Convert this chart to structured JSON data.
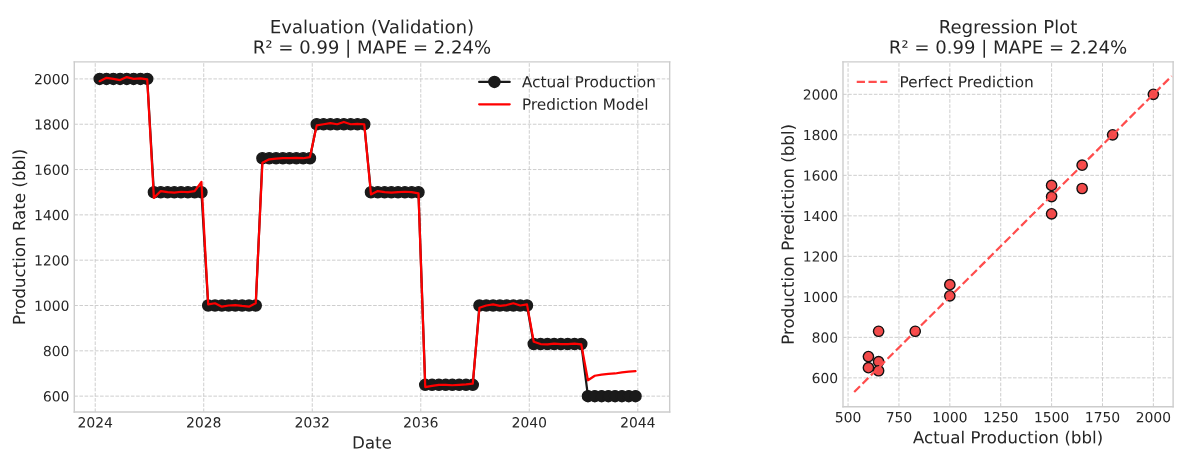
{
  "chart_data": [
    {
      "type": "line",
      "title": "Evaluation (Validation)\nR² = 0.99 | MAPE = 2.24%",
      "xlabel": "Date",
      "ylabel": "Production Rate (bbl)",
      "x": [
        "2024-03",
        "2024-06",
        "2024-09",
        "2024-12",
        "2025-03",
        "2025-06",
        "2025-09",
        "2025-12",
        "2026-03",
        "2026-06",
        "2026-09",
        "2026-12",
        "2027-03",
        "2027-06",
        "2027-09",
        "2027-12",
        "2028-03",
        "2028-06",
        "2028-09",
        "2028-12",
        "2029-03",
        "2029-06",
        "2029-09",
        "2029-12",
        "2030-03",
        "2030-06",
        "2030-09",
        "2030-12",
        "2031-03",
        "2031-06",
        "2031-09",
        "2031-12",
        "2032-03",
        "2032-06",
        "2032-09",
        "2032-12",
        "2033-03",
        "2033-06",
        "2033-09",
        "2033-12",
        "2034-03",
        "2034-06",
        "2034-09",
        "2034-12",
        "2035-03",
        "2035-06",
        "2035-09",
        "2035-12",
        "2036-03",
        "2036-06",
        "2036-09",
        "2036-12",
        "2037-03",
        "2037-06",
        "2037-09",
        "2037-12",
        "2038-03",
        "2038-06",
        "2038-09",
        "2038-12",
        "2039-03",
        "2039-06",
        "2039-09",
        "2039-12",
        "2040-03",
        "2040-06",
        "2040-09",
        "2040-12",
        "2041-03",
        "2041-06",
        "2041-09",
        "2041-12",
        "2042-03",
        "2042-06",
        "2042-09",
        "2042-12",
        "2043-03",
        "2043-06",
        "2043-09",
        "2043-12"
      ],
      "series": [
        {
          "name": "Actual Production",
          "color": "#1a1a1a",
          "marker": "circle",
          "values": [
            2000,
            2000,
            2000,
            2000,
            2000,
            2000,
            2000,
            2000,
            1500,
            1500,
            1500,
            1500,
            1500,
            1500,
            1500,
            1500,
            1000,
            1000,
            1000,
            1000,
            1000,
            1000,
            1000,
            1000,
            1650,
            1650,
            1650,
            1650,
            1650,
            1650,
            1650,
            1650,
            1800,
            1800,
            1800,
            1800,
            1800,
            1800,
            1800,
            1800,
            1500,
            1500,
            1500,
            1500,
            1500,
            1500,
            1500,
            1500,
            650,
            650,
            650,
            650,
            650,
            650,
            650,
            650,
            1000,
            1000,
            1000,
            1000,
            1000,
            1000,
            1000,
            1000,
            830,
            830,
            830,
            830,
            830,
            830,
            830,
            830,
            600,
            600,
            600,
            600,
            600,
            600,
            600,
            600
          ]
        },
        {
          "name": "Prediction Model",
          "color": "#ff0000",
          "values": [
            1990,
            2005,
            2000,
            1995,
            2008,
            2000,
            2002,
            1998,
            1475,
            1505,
            1500,
            1498,
            1502,
            1500,
            1505,
            1545,
            1005,
            1010,
            995,
            1000,
            1002,
            998,
            995,
            1010,
            1630,
            1645,
            1648,
            1650,
            1650,
            1652,
            1650,
            1655,
            1795,
            1800,
            1805,
            1800,
            1810,
            1800,
            1802,
            1800,
            1490,
            1505,
            1500,
            1498,
            1500,
            1502,
            1500,
            1495,
            640,
            645,
            650,
            650,
            648,
            650,
            652,
            655,
            990,
            1000,
            1005,
            998,
            1002,
            1010,
            1000,
            1005,
            840,
            830,
            828,
            832,
            830,
            830,
            832,
            828,
            670,
            690,
            695,
            698,
            700,
            705,
            708,
            710
          ]
        }
      ],
      "xlim": [
        "2023-03-25",
        "2045-03-05"
      ],
      "xticks": [
        "2024",
        "2028",
        "2032",
        "2036",
        "2040",
        "2044"
      ],
      "ylim": [
        530,
        2075
      ],
      "yticks": [
        600,
        800,
        1000,
        1200,
        1400,
        1600,
        1800,
        2000
      ],
      "grid": true,
      "legend": "top right"
    },
    {
      "type": "scatter",
      "title": "Regression Plot\nR² = 0.99 | MAPE = 2.24%",
      "xlabel": "Actual Production (bbl)",
      "ylabel": "Production Prediction (bbl)",
      "series": [
        {
          "color": "#f24a4a",
          "x": [
            600,
            600,
            650,
            650,
            650,
            830,
            1000,
            1000,
            1500,
            1500,
            1500,
            1650,
            1650,
            1800,
            2000
          ],
          "values": [
            650,
            705,
            830,
            680,
            635,
            830,
            1060,
            1005,
            1550,
            1495,
            1410,
            1650,
            1535,
            1800,
            2000
          ]
        },
        {
          "name": "Perfect Prediction",
          "type": "line",
          "line_style": "dashed",
          "color": "#ff4d4d",
          "x": [
            530,
            2090
          ],
          "values": [
            530,
            2090
          ]
        }
      ],
      "xlim": [
        475,
        2097
      ],
      "xticks": [
        500,
        750,
        1000,
        1250,
        1500,
        1750,
        2000
      ],
      "ylim": [
        457,
        2160
      ],
      "yticks": [
        600,
        800,
        1000,
        1200,
        1400,
        1600,
        1800,
        2000
      ],
      "grid": true,
      "legend": "top left"
    }
  ]
}
